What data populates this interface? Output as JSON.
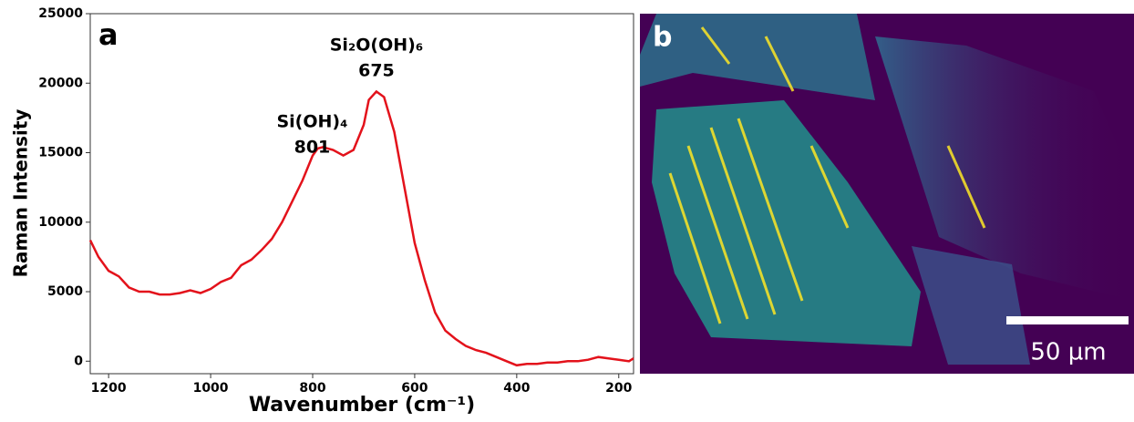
{
  "chart_data": {
    "type": "line",
    "panel_label": "a",
    "x_label": "Wavenumber (cm⁻¹)",
    "y_label": "Raman Intensity",
    "x": [
      1236,
      1220,
      1200,
      1180,
      1160,
      1140,
      1120,
      1100,
      1080,
      1060,
      1040,
      1020,
      1000,
      980,
      960,
      940,
      920,
      900,
      880,
      860,
      840,
      820,
      800,
      790,
      780,
      760,
      740,
      720,
      700,
      690,
      675,
      660,
      640,
      620,
      600,
      580,
      560,
      540,
      520,
      500,
      480,
      460,
      440,
      420,
      400,
      380,
      360,
      340,
      320,
      300,
      280,
      260,
      240,
      220,
      200,
      180,
      171
    ],
    "series": [
      {
        "color": "#e3121b",
        "values": [
          8700,
          7500,
          6500,
          6100,
          5300,
          5000,
          5000,
          4800,
          4800,
          4900,
          5100,
          4900,
          5200,
          5700,
          6000,
          6900,
          7300,
          8000,
          8800,
          10000,
          11500,
          13000,
          14800,
          15300,
          15400,
          15200,
          14800,
          15200,
          17000,
          18800,
          19400,
          19000,
          16500,
          12500,
          8500,
          5800,
          3500,
          2200,
          1600,
          1100,
          800,
          600,
          300,
          0,
          -300,
          -200,
          -200,
          -100,
          -100,
          0,
          0,
          100,
          300,
          200,
          100,
          0,
          200
        ]
      }
    ],
    "xlim": [
      1236,
      171
    ],
    "ylim": [
      -900,
      25000
    ],
    "xticks": [
      1200,
      1000,
      800,
      600,
      400,
      200
    ],
    "yticks": [
      0,
      5000,
      10000,
      15000,
      20000,
      25000
    ],
    "annotations": [
      {
        "text": "Si(OH)₄",
        "value": 801,
        "y": 17200
      },
      {
        "text": "Si₂O(OH)₆",
        "value": 675,
        "y": 22700
      }
    ]
  },
  "image_panel": {
    "label": "b",
    "scale_bar": "50 µm"
  }
}
